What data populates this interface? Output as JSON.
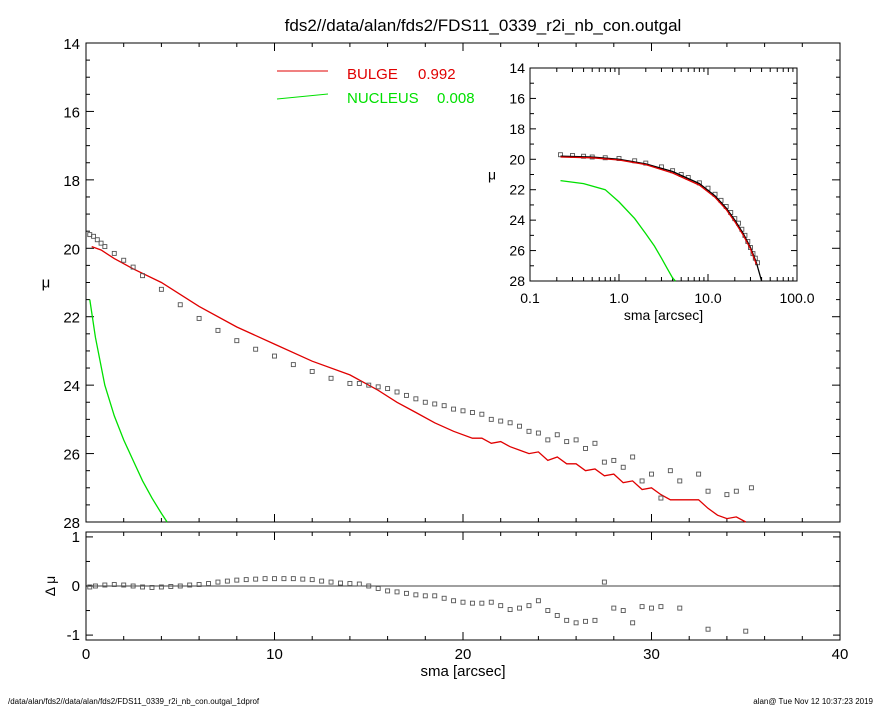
{
  "colors": {
    "axis": "#000000",
    "bulge": "#e00000",
    "nucleus": "#00e000",
    "data_points": "#555555",
    "zero_line": "#000000"
  },
  "chart_data": [
    {
      "type": "scatter",
      "panel": "main",
      "title": "fds2//data/alan/fds2/FDS11_0339_r2i_nb_con.outgal",
      "xlabel": "",
      "ylabel": "μ",
      "xlim": [
        0,
        40
      ],
      "ylim": [
        28,
        14
      ],
      "y_inverted": true,
      "xticks": [
        0,
        10,
        20,
        30,
        40
      ],
      "yticks": [
        14,
        16,
        18,
        20,
        22,
        24,
        26,
        28
      ],
      "legend_position": "top-center",
      "legend": [
        {
          "label": "BULGE",
          "value": "0.992",
          "color": "#e00000"
        },
        {
          "label": "NUCLEUS",
          "value": "0.008",
          "color": "#00e000"
        }
      ],
      "series": [
        {
          "name": "BULGE",
          "kind": "line",
          "color": "#e00000",
          "x": [
            0.3,
            0.8,
            1.5,
            2.5,
            4,
            6,
            8,
            10,
            12,
            14,
            15.5,
            16.5,
            17.5,
            18.5,
            19.5,
            20.5,
            21,
            21.5,
            22,
            22.5,
            23,
            23.5,
            24,
            24.5,
            25,
            25.5,
            26,
            26.5,
            27,
            27.5,
            28,
            28.5,
            29,
            29.5,
            30,
            30.5,
            31,
            32,
            32.5,
            33,
            33.5,
            34,
            34.5,
            35
          ],
          "y": [
            19.95,
            20.05,
            20.3,
            20.6,
            21.0,
            21.7,
            22.3,
            22.8,
            23.3,
            23.7,
            24.15,
            24.5,
            24.8,
            25.1,
            25.35,
            25.55,
            25.55,
            25.7,
            25.65,
            25.8,
            25.9,
            26.0,
            25.95,
            26.2,
            26.1,
            26.3,
            26.3,
            26.5,
            26.45,
            26.65,
            26.6,
            26.85,
            26.8,
            27.05,
            27.0,
            27.2,
            27.35,
            27.35,
            27.35,
            27.6,
            27.8,
            27.9,
            27.85,
            28.1
          ]
        },
        {
          "name": "NUCLEUS",
          "kind": "line",
          "color": "#00e000",
          "x": [
            0.2,
            0.5,
            1,
            1.5,
            2,
            2.5,
            3,
            3.5,
            4,
            4.3
          ],
          "y": [
            21.5,
            22.6,
            24.0,
            24.9,
            25.6,
            26.2,
            26.8,
            27.3,
            27.75,
            28.0
          ]
        },
        {
          "name": "",
          "kind": "points",
          "color": "#555555",
          "x": [
            0.2,
            0.4,
            0.6,
            0.8,
            1.0,
            1.5,
            2,
            2.5,
            3,
            4,
            5,
            6,
            7,
            8,
            9,
            10,
            11,
            12,
            13,
            14,
            14.5,
            15,
            15.5,
            16,
            16.5,
            17,
            17.5,
            18,
            18.5,
            19,
            19.5,
            20,
            20.5,
            21,
            21.5,
            22,
            22.5,
            23,
            23.5,
            24,
            24.5,
            25,
            25.5,
            26,
            26.5,
            27,
            27.5,
            28,
            28.5,
            29,
            29.5,
            30,
            30.5,
            31,
            31.5,
            32.5,
            33,
            34,
            34.5,
            35.3
          ],
          "y": [
            19.6,
            19.65,
            19.75,
            19.85,
            19.95,
            20.15,
            20.35,
            20.55,
            20.8,
            21.2,
            21.65,
            22.05,
            22.4,
            22.7,
            22.95,
            23.15,
            23.4,
            23.6,
            23.8,
            23.95,
            23.95,
            24.0,
            24.05,
            24.1,
            24.2,
            24.3,
            24.4,
            24.5,
            24.55,
            24.6,
            24.7,
            24.75,
            24.8,
            24.85,
            25.0,
            25.05,
            25.1,
            25.2,
            25.35,
            25.4,
            25.6,
            25.45,
            25.65,
            25.6,
            25.85,
            25.7,
            26.25,
            26.2,
            26.4,
            26.1,
            26.8,
            26.6,
            27.3,
            26.5,
            26.8,
            26.6,
            27.1,
            27.2,
            27.1,
            27.0
          ]
        }
      ]
    },
    {
      "type": "scatter",
      "panel": "inset",
      "xscale": "log",
      "xlabel": "sma [arcsec]",
      "ylabel": "μ",
      "xlim": [
        0.1,
        100.0
      ],
      "ylim": [
        28,
        14
      ],
      "y_inverted": true,
      "xticks": [
        "0.1",
        "1.0",
        "10.0",
        "100.0"
      ],
      "yticks": [
        14,
        16,
        18,
        20,
        22,
        24,
        26,
        28
      ],
      "series": [
        {
          "name": "",
          "kind": "points",
          "color": "#555555",
          "x": [
            0.22,
            0.3,
            0.4,
            0.5,
            0.7,
            1.0,
            1.5,
            2,
            3,
            4,
            5,
            6,
            8,
            10,
            12,
            14,
            16,
            18,
            20,
            22,
            24,
            26,
            28,
            30,
            32,
            34,
            36
          ],
          "y": [
            19.7,
            19.75,
            19.8,
            19.85,
            19.9,
            19.95,
            20.1,
            20.25,
            20.5,
            20.75,
            21.0,
            21.2,
            21.55,
            21.9,
            22.3,
            22.7,
            23.1,
            23.5,
            23.9,
            24.2,
            24.6,
            25.0,
            25.4,
            25.8,
            26.2,
            26.5,
            26.8
          ]
        },
        {
          "name": "",
          "kind": "line",
          "color": "#000000",
          "x": [
            0.22,
            0.5,
            1,
            2,
            4,
            8,
            12,
            16,
            20,
            25,
            30,
            35,
            40
          ],
          "y": [
            19.8,
            19.85,
            20.0,
            20.3,
            20.8,
            21.6,
            22.4,
            23.2,
            24.0,
            24.9,
            25.8,
            26.8,
            28.0
          ]
        },
        {
          "name": "",
          "kind": "line",
          "color": "#e00000",
          "x": [
            0.22,
            0.5,
            1,
            2,
            4,
            8,
            12,
            16,
            20,
            25,
            30,
            35
          ],
          "y": [
            19.85,
            19.9,
            20.05,
            20.35,
            20.9,
            21.7,
            22.5,
            23.3,
            24.1,
            25.0,
            25.9,
            26.9
          ]
        },
        {
          "name": "",
          "kind": "line",
          "color": "#00e000",
          "x": [
            0.22,
            0.4,
            0.7,
            1.0,
            1.5,
            2,
            2.5,
            3,
            3.5,
            4,
            4.3
          ],
          "y": [
            21.4,
            21.6,
            22.0,
            22.8,
            23.9,
            24.9,
            25.7,
            26.5,
            27.2,
            27.8,
            28.1
          ]
        }
      ]
    },
    {
      "type": "scatter",
      "panel": "residual",
      "xlabel": "sma [arcsec]",
      "ylabel": "Δ μ",
      "xlim": [
        0,
        40
      ],
      "ylim": [
        -1.1,
        1.1
      ],
      "xticks": [
        0,
        10,
        20,
        30,
        40
      ],
      "yticks": [
        1,
        0,
        -1
      ],
      "zero_line": true,
      "series": [
        {
          "name": "",
          "kind": "points",
          "color": "#555555",
          "x": [
            0.2,
            0.5,
            1,
            1.5,
            2,
            2.5,
            3,
            3.5,
            4,
            4.5,
            5,
            5.5,
            6,
            6.5,
            7,
            7.5,
            8,
            8.5,
            9,
            9.5,
            10,
            10.5,
            11,
            11.5,
            12,
            12.5,
            13,
            13.5,
            14,
            14.5,
            15,
            15.5,
            16,
            16.5,
            17,
            17.5,
            18,
            18.5,
            19,
            19.5,
            20,
            20.5,
            21,
            21.5,
            22,
            22.5,
            23,
            23.5,
            24,
            24.5,
            25,
            25.5,
            26,
            26.5,
            27,
            27.5,
            28,
            28.5,
            29,
            29.5,
            30,
            30.5,
            31.5,
            33,
            35
          ],
          "y": [
            -0.02,
            0.0,
            0.02,
            0.03,
            0.02,
            0.0,
            -0.02,
            -0.03,
            -0.02,
            -0.01,
            0.0,
            0.02,
            0.03,
            0.05,
            0.08,
            0.1,
            0.12,
            0.13,
            0.14,
            0.15,
            0.15,
            0.15,
            0.15,
            0.14,
            0.13,
            0.1,
            0.08,
            0.06,
            0.05,
            0.04,
            0.0,
            -0.05,
            -0.1,
            -0.12,
            -0.15,
            -0.18,
            -0.2,
            -0.2,
            -0.25,
            -0.3,
            -0.33,
            -0.35,
            -0.35,
            -0.33,
            -0.4,
            -0.48,
            -0.45,
            -0.4,
            -0.3,
            -0.5,
            -0.6,
            -0.7,
            -0.75,
            -0.72,
            -0.7,
            0.08,
            -0.45,
            -0.5,
            -0.75,
            -0.42,
            -0.45,
            -0.42,
            -0.45,
            -0.88,
            -0.92
          ]
        }
      ]
    }
  ],
  "footer": {
    "left": "/data/alan/fds2//data/alan/fds2/FDS11_0339_r2i_nb_con.outgal_1dprof",
    "right": "alan@  Tue Nov 12 10:37:23 2019"
  }
}
